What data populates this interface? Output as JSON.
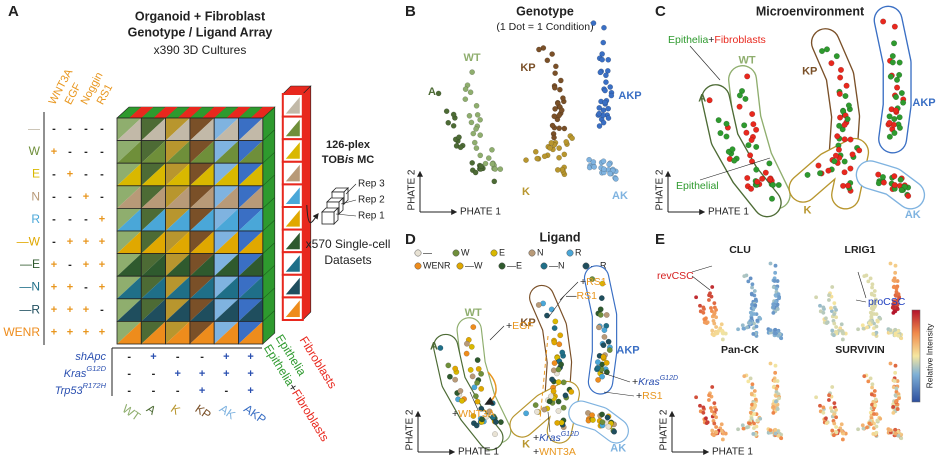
{
  "figure": {
    "a": {
      "label": "A",
      "title": [
        "Organoid + Fibroblast",
        "Genotype / Ligand Array"
      ],
      "subtitle": "x390 3D Cultures",
      "ligands": [
        "WNT3A",
        "EGF",
        "Noggin",
        "RS1"
      ],
      "rows": [
        {
          "label": "—",
          "color": "#c2b9a8",
          "signs": [
            "-",
            "-",
            "-",
            "-"
          ]
        },
        {
          "label": "W",
          "color": "#6f8f3a",
          "signs": [
            "+",
            "-",
            "-",
            "-"
          ]
        },
        {
          "label": "E",
          "color": "#d9b800",
          "signs": [
            "-",
            "+",
            "-",
            "-"
          ]
        },
        {
          "label": "N",
          "color": "#b89a78",
          "signs": [
            "-",
            "-",
            "+",
            "-"
          ]
        },
        {
          "label": "R",
          "color": "#4aa7d8",
          "signs": [
            "-",
            "-",
            "-",
            "+"
          ]
        },
        {
          "label": "—W",
          "color": "#e0a800",
          "signs": [
            "-",
            "+",
            "+",
            "+"
          ]
        },
        {
          "label": "—E",
          "color": "#2f5a2e",
          "signs": [
            "+",
            "-",
            "+",
            "+"
          ]
        },
        {
          "label": "—N",
          "color": "#1f6f88",
          "signs": [
            "+",
            "+",
            "-",
            "+"
          ]
        },
        {
          "label": "—R",
          "color": "#1f4e5e",
          "signs": [
            "+",
            "+",
            "+",
            "-"
          ]
        },
        {
          "label": "WENR",
          "color": "#ee8c1c",
          "signs": [
            "+",
            "+",
            "+",
            "+"
          ]
        }
      ],
      "genotype_rows": [
        {
          "name": "shApc",
          "signs": [
            "-",
            "+",
            "-",
            "-",
            "+",
            "+"
          ]
        },
        {
          "name": "Kras",
          "sup": "G12D",
          "signs": [
            "-",
            "-",
            "+",
            "+",
            "+",
            "+"
          ]
        },
        {
          "name": "Trp53",
          "sup": "R172H",
          "signs": [
            "-",
            "-",
            "-",
            "+",
            "-",
            "+"
          ]
        }
      ],
      "columns": [
        {
          "label": "WT",
          "color": "#8fae6e"
        },
        {
          "label": "A",
          "color": "#4d6b35"
        },
        {
          "label": "K",
          "color": "#b8962e"
        },
        {
          "label": "KP",
          "color": "#7a5028"
        },
        {
          "label": "AK",
          "color": "#7fb3e0"
        },
        {
          "label": "AKP",
          "color": "#3a6fc4"
        }
      ],
      "layers": {
        "fibroblasts": "Fibroblasts",
        "epithelia": "Epithelia",
        "epithelia_2": "Epithelia",
        "plus": "+",
        "fibroblasts_2": "Fibroblasts"
      },
      "plex": "126-plex",
      "method": [
        "TOB",
        "is",
        " MC"
      ],
      "reps": [
        "Rep 3",
        "Rep 2",
        "Rep 1"
      ],
      "datasets": [
        "x570 Single-cell",
        "Datasets"
      ]
    },
    "b": {
      "label": "B",
      "title": "Genotype",
      "subtitle": "(1 Dot = 1 Condition)",
      "groups": [
        {
          "label": "WT",
          "color": "#8fae6e"
        },
        {
          "label": "A",
          "color": "#4d6b35"
        },
        {
          "label": "KP",
          "color": "#7a5028"
        },
        {
          "label": "AKP",
          "color": "#3a6fc4"
        },
        {
          "label": "K",
          "color": "#b8962e"
        },
        {
          "label": "AK",
          "color": "#7fb3e0"
        }
      ],
      "x_label": "PHATE 1",
      "y_label": "PHATE 2"
    },
    "c": {
      "label": "C",
      "title": "Microenvironment",
      "legend": [
        {
          "text": "Epithelia",
          "color": "#2e9a2e"
        },
        {
          "text": "+",
          "color": "#222222"
        },
        {
          "text": "Fibroblasts",
          "color": "#e8281e"
        }
      ],
      "epithelial": "Epithelial",
      "groups": [
        {
          "label": "WT",
          "color": "#8fae6e"
        },
        {
          "label": "A",
          "color": "#4d6b35"
        },
        {
          "label": "KP",
          "color": "#7a5028"
        },
        {
          "label": "AKP",
          "color": "#3a6fc4"
        },
        {
          "label": "K",
          "color": "#b8962e"
        },
        {
          "label": "AK",
          "color": "#7fb3e0"
        }
      ],
      "x_label": "PHATE 1",
      "y_label": "PHATE 2"
    },
    "d": {
      "label": "D",
      "title": "Ligand",
      "legend": [
        {
          "label": "—",
          "color": "#e8e2d4"
        },
        {
          "label": "W",
          "color": "#6f8f3a"
        },
        {
          "label": "E",
          "color": "#d9b800"
        },
        {
          "label": "N",
          "color": "#b89a78"
        },
        {
          "label": "R",
          "color": "#4aa7d8"
        },
        {
          "label": "WENR",
          "color": "#ee8c1c"
        },
        {
          "label": "—W",
          "color": "#e0a800"
        },
        {
          "label": "—E",
          "color": "#2f5a2e"
        },
        {
          "label": "—N",
          "color": "#1f6f88"
        },
        {
          "label": "—R",
          "color": "#1f4e5e"
        }
      ],
      "annotations": [
        {
          "sign": "+",
          "text": "RS1",
          "color": "#e8961e"
        },
        {
          "sign": "—",
          "text": "RS1",
          "color": "#e8961e"
        },
        {
          "sign": "+",
          "text": "EGF",
          "color": "#e8961e"
        },
        {
          "sign": "+",
          "text": "Kras",
          "sup": "G12D",
          "color": "#2a4fb0"
        },
        {
          "sign": "+",
          "text": "RS1",
          "color": "#e8961e"
        },
        {
          "sign": "+",
          "text": "WNT3A",
          "color": "#e8961e"
        },
        {
          "sign": "+",
          "text": "Kras",
          "sup": "G12D",
          "color": "#2a4fb0"
        },
        {
          "sign": "+",
          "text": "WNT3A",
          "color": "#e8961e"
        }
      ],
      "groups": [
        {
          "label": "WT",
          "color": "#8fae6e"
        },
        {
          "label": "A",
          "color": "#4d6b35"
        },
        {
          "label": "KP",
          "color": "#7a5028"
        },
        {
          "label": "AKP",
          "color": "#3a6fc4"
        },
        {
          "label": "K",
          "color": "#b8962e"
        },
        {
          "label": "AK",
          "color": "#7fb3e0"
        }
      ],
      "x_label": "PHATE 1",
      "y_label": "PHATE 2"
    },
    "e": {
      "label": "E",
      "markers": [
        "CLU",
        "LRIG1",
        "Pan-CK",
        "SURVIVIN"
      ],
      "rev": {
        "text": "revCSC",
        "color": "#d62020"
      },
      "pro": {
        "text": "proCSC",
        "color": "#2040c0"
      },
      "colorbar": "Relative Intensity",
      "x_label": "PHATE 1",
      "y_label": "PHATE 2"
    }
  }
}
